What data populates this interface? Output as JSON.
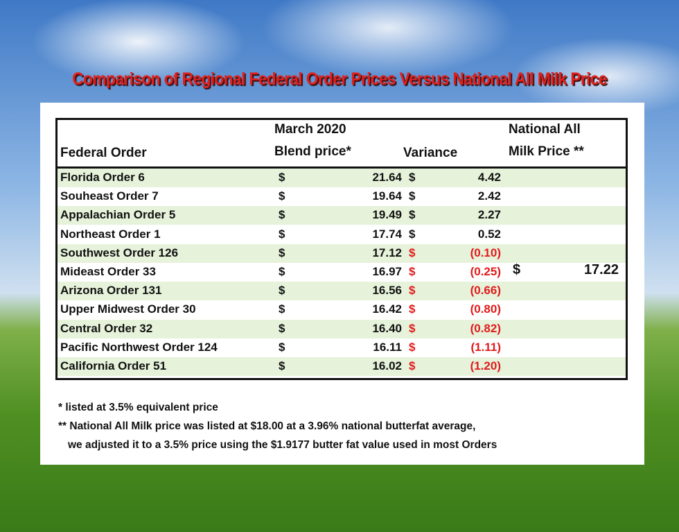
{
  "title": "Comparison of Regional Federal Order Prices Versus National All Milk Price",
  "table": {
    "headers": [
      [
        "Federal Order"
      ],
      [
        "March 2020",
        "Blend price*"
      ],
      [
        "Variance"
      ],
      [
        "National All",
        "Milk Price **"
      ]
    ],
    "rows": [
      [
        "Florida Order 6",
        "$",
        "21.64",
        "$",
        "4.42"
      ],
      [
        "Souheast Order 7",
        "$",
        "19.64",
        "$",
        "2.42"
      ],
      [
        "Appalachian Order 5",
        "$",
        "19.49",
        "$",
        "2.27"
      ],
      [
        "Northeast Order 1",
        "$",
        "17.74",
        "$",
        "0.52"
      ],
      [
        "Southwest Order 126",
        "$",
        "17.12",
        "$",
        "(0.10)"
      ],
      [
        "Mideast Order 33",
        "$",
        "16.97",
        "$",
        "(0.25)",
        "$",
        "17.22"
      ],
      [
        "Arizona Order 131",
        "$",
        "16.56",
        "$",
        "(0.66)"
      ],
      [
        "Upper Midwest Order 30",
        "$",
        "16.42",
        "$",
        "(0.80)"
      ],
      [
        "Central Order 32",
        "$",
        "16.40",
        "$",
        "(0.82)"
      ],
      [
        "Pacific Northwest Order 124",
        "$",
        "16.11",
        "$",
        "(1.11)"
      ],
      [
        "California Order 51",
        "$",
        "16.02",
        "$",
        "(1.20)"
      ]
    ]
  },
  "footnotes": [
    "* listed at 3.5% equivalent price",
    "** National All Milk price was listed at $18.00 at a 3.96% national butterfat average,",
    "we adjusted it to a 3.5% price using the $1.9177 butter fat value used in most Orders"
  ]
}
